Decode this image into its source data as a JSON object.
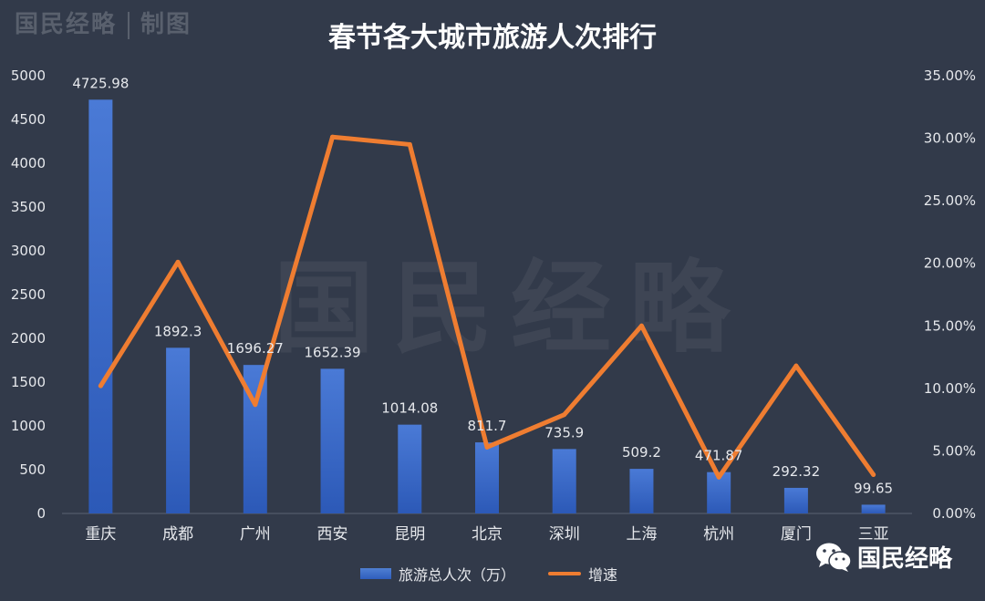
{
  "brand": {
    "name": "国民经略",
    "tag": "制图"
  },
  "watermark": "国民经略",
  "footer_brand": "国民经略",
  "colors": {
    "background": "#323a4a",
    "bar": "#3c6fd0",
    "line": "#ef7d31",
    "gridline": "#4a5263",
    "text": "#ffffff",
    "axis_text": "#e6e8ec"
  },
  "chart_data": {
    "type": "bar",
    "title": "春节各大城市旅游人次排行",
    "categories": [
      "重庆",
      "成都",
      "广州",
      "西安",
      "昆明",
      "北京",
      "深圳",
      "上海",
      "杭州",
      "厦门",
      "三亚"
    ],
    "series": [
      {
        "name": "旅游总人次（万）",
        "type": "bar",
        "axis": "left",
        "values": [
          4725.98,
          1892.3,
          1696.27,
          1652.39,
          1014.08,
          811.7,
          735.9,
          509.2,
          471.87,
          292.32,
          99.65
        ],
        "labels": [
          "4725.98",
          "1892.3",
          "1696.27",
          "1652.39",
          "1014.08",
          "811.7",
          "735.9",
          "509.2",
          "471.87",
          "292.32",
          "99.65"
        ]
      },
      {
        "name": "增速",
        "type": "line",
        "axis": "right",
        "values": [
          10.2,
          20.1,
          8.7,
          30.1,
          29.5,
          5.3,
          7.9,
          15.0,
          2.9,
          11.8,
          3.1
        ]
      }
    ],
    "y_left": {
      "ticks": [
        "0",
        "500",
        "1000",
        "1500",
        "2000",
        "2500",
        "3000",
        "3500",
        "4000",
        "4500",
        "5000"
      ],
      "lim": [
        0,
        5000
      ]
    },
    "y_right": {
      "ticks": [
        "0.00%",
        "5.00%",
        "10.00%",
        "15.00%",
        "20.00%",
        "25.00%",
        "30.00%",
        "35.00%"
      ],
      "lim": [
        0,
        35
      ]
    },
    "legend_position": "bottom",
    "grid": false
  }
}
